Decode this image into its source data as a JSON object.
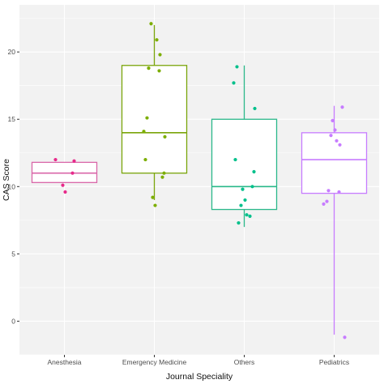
{
  "chart_data": {
    "type": "boxplot",
    "xlabel": "Journal Speciality",
    "ylabel": "CAS Score",
    "ylim": [
      -2.5,
      23.5
    ],
    "yticks": [
      0,
      5,
      10,
      15,
      20
    ],
    "categories": [
      "Anesthesia",
      "Emergency Medicine",
      "Others",
      "Pediatrics"
    ],
    "colors": [
      "#e7298a",
      "#7cae00",
      "#00c08b",
      "#c77cff"
    ],
    "stroke_colors": [
      "#d966a8",
      "#7aa50a",
      "#2ab88a",
      "#c77cff"
    ],
    "panel_background": "#f2f2f2",
    "grid": true,
    "boxes": [
      {
        "category": "Anesthesia",
        "min": 10.3,
        "q1": 10.3,
        "median": 11.0,
        "q3": 11.8,
        "max": 11.8
      },
      {
        "category": "Emergency Medicine",
        "min": 9.0,
        "q1": 11.0,
        "median": 14.0,
        "q3": 19.0,
        "max": 22.0
      },
      {
        "category": "Others",
        "min": 7.0,
        "q1": 8.3,
        "median": 10.0,
        "q3": 15.0,
        "max": 19.0
      },
      {
        "category": "Pediatrics",
        "min": -1.0,
        "q1": 9.5,
        "median": 12.0,
        "q3": 14.0,
        "max": 16.0
      }
    ],
    "points": [
      {
        "category": "Anesthesia",
        "values": [
          12.0,
          11.9,
          11.0,
          10.1,
          9.6
        ]
      },
      {
        "category": "Emergency Medicine",
        "values": [
          22.1,
          20.9,
          19.8,
          18.8,
          18.6,
          15.1,
          14.1,
          13.7,
          12.0,
          11.0,
          10.7,
          9.2,
          8.6
        ]
      },
      {
        "category": "Others",
        "values": [
          18.9,
          17.7,
          15.8,
          12.0,
          11.1,
          10.0,
          9.8,
          9.0,
          8.6,
          7.9,
          7.8,
          7.3
        ]
      },
      {
        "category": "Pediatrics",
        "values": [
          15.9,
          14.9,
          14.2,
          13.8,
          13.4,
          13.1,
          9.7,
          9.6,
          8.9,
          8.7,
          -1.2
        ]
      }
    ]
  }
}
